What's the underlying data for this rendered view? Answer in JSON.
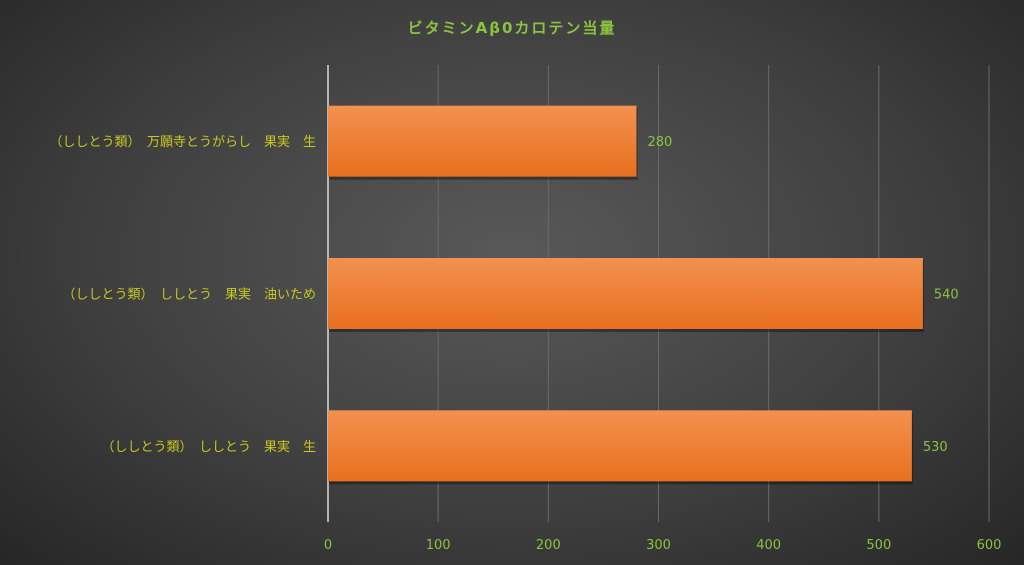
{
  "chart_data": {
    "type": "bar",
    "orientation": "horizontal",
    "title": "ビタミンAβ0カロテン当量",
    "categories": [
      "（ししとう類）　万願寺とうがらし　果実　生",
      "（ししとう類）　ししとう　果実　油いため",
      "（ししとう類）　ししとう　果実　生"
    ],
    "values": [
      280,
      540,
      530
    ],
    "xlim": [
      0,
      600
    ],
    "xticks": [
      0,
      100,
      200,
      300,
      400,
      500,
      600
    ],
    "grid": true,
    "data_labels": true,
    "bar_color": "#ed7d31",
    "text_color": "#8ac43f",
    "category_color": "#c8c81e"
  }
}
